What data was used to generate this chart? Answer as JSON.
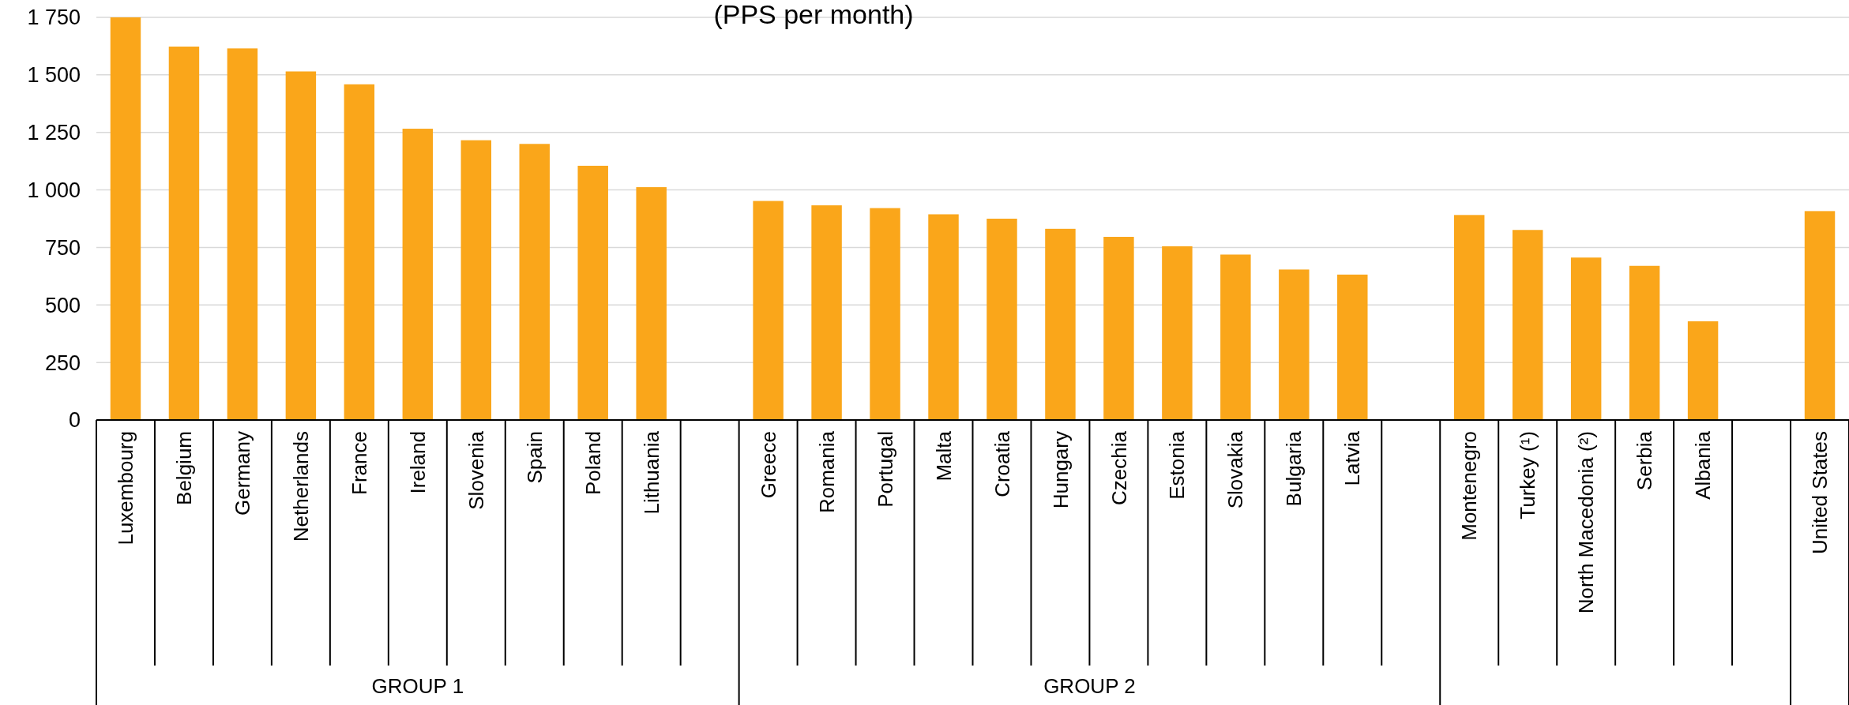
{
  "chart_data": {
    "type": "bar",
    "title": "(PPS per month)",
    "categories": [
      "Luxembourg",
      "Belgium",
      "Germany",
      "Netherlands",
      "France",
      "Ireland",
      "Slovenia",
      "Spain",
      "Poland",
      "Lithuania",
      null,
      "Greece",
      "Romania",
      "Portugal",
      "Malta",
      "Croatia",
      "Hungary",
      "Czechia",
      "Estonia",
      "Slovakia",
      "Bulgaria",
      "Latvia",
      null,
      "Montenegro",
      "Turkey (¹)",
      "North Macedonia (²)",
      "Serbia",
      "Albania",
      null,
      "United States"
    ],
    "values": [
      1750,
      1623,
      1615,
      1515,
      1459,
      1266,
      1216,
      1200,
      1105,
      1012,
      null,
      952,
      933,
      921,
      894,
      875,
      831,
      796,
      755,
      719,
      654,
      632,
      null,
      891,
      826,
      706,
      670,
      429,
      null,
      908
    ],
    "color": "#faa61a",
    "ylim": [
      0,
      1750
    ],
    "yticks": [
      0,
      {
        "value": 250,
        "label": "250"
      },
      {
        "value": 500,
        "label": "500"
      },
      {
        "value": 750,
        "label": "750"
      },
      {
        "value": 1000,
        "label": "1 000"
      },
      {
        "value": 1250,
        "label": "1 250"
      },
      {
        "value": 1500,
        "label": "1 500"
      },
      {
        "value": 1750,
        "label": "1 750"
      }
    ],
    "grid": "y",
    "annotations": [
      "GROUP 1",
      "GROUP 2"
    ]
  }
}
